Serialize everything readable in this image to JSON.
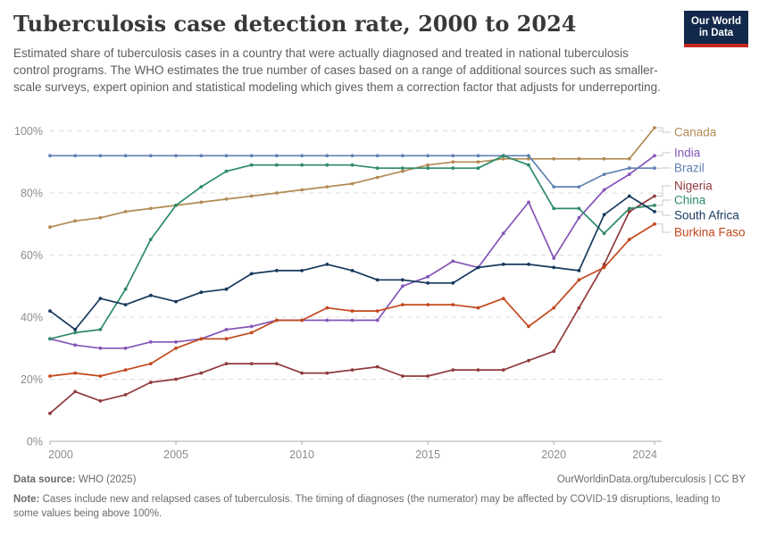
{
  "header": {
    "title": "Tuberculosis case detection rate, 2000 to 2024",
    "subtitle": "Estimated share of tuberculosis cases in a country that were actually diagnosed and treated in national tuberculosis control programs. The WHO estimates the true number of cases based on a range of additional sources such as smaller-scale surveys, expert opinion and statistical modeling which gives them a correction factor that adjusts for underreporting.",
    "logo": {
      "line1": "Our World",
      "line2": "in Data",
      "bg_color": "#12294B",
      "bar_color": "#C5281F"
    }
  },
  "chart_data": {
    "type": "line",
    "x": [
      2000,
      2001,
      2002,
      2003,
      2004,
      2005,
      2006,
      2007,
      2008,
      2009,
      2010,
      2011,
      2012,
      2013,
      2014,
      2015,
      2016,
      2017,
      2018,
      2019,
      2020,
      2021,
      2022,
      2023,
      2024
    ],
    "x_ticks": [
      "2000",
      "2005",
      "2010",
      "2015",
      "2020",
      "2024"
    ],
    "x_tick_years": [
      2000,
      2005,
      2010,
      2015,
      2020,
      2024
    ],
    "y_ticks": [
      "0%",
      "20%",
      "40%",
      "60%",
      "80%",
      "100%"
    ],
    "y_tick_values": [
      0,
      20,
      40,
      60,
      80,
      100
    ],
    "ylim": [
      0,
      101
    ],
    "grid": "horizontal-dashed",
    "legend_position": "right",
    "unit": "%",
    "series": [
      {
        "name": "Canada",
        "color": "#B28B54",
        "values": [
          69,
          71,
          72,
          74,
          75,
          76,
          77,
          78,
          79,
          80,
          81,
          82,
          83,
          85,
          87,
          89,
          90,
          90,
          91,
          91,
          91,
          91,
          91,
          91,
          101
        ]
      },
      {
        "name": "India",
        "color": "#8455B8",
        "values": [
          33,
          31,
          30,
          30,
          32,
          32,
          33,
          36,
          37,
          39,
          39,
          39,
          39,
          39,
          50,
          53,
          58,
          56,
          67,
          77,
          59,
          72,
          81,
          86,
          92
        ]
      },
      {
        "name": "Brazil",
        "color": "#6082B2",
        "values": [
          92,
          92,
          92,
          92,
          92,
          92,
          92,
          92,
          92,
          92,
          92,
          92,
          92,
          92,
          92,
          92,
          92,
          92,
          92,
          92,
          82,
          82,
          86,
          88,
          88
        ]
      },
      {
        "name": "Nigeria",
        "color": "#913B3D",
        "values": [
          9,
          16,
          13,
          15,
          19,
          20,
          22,
          25,
          25,
          25,
          22,
          22,
          23,
          24,
          21,
          21,
          23,
          23,
          23,
          26,
          29,
          43,
          57,
          74,
          79
        ]
      },
      {
        "name": "China",
        "color": "#2E8A6A",
        "values": [
          33,
          35,
          36,
          49,
          65,
          76,
          82,
          87,
          89,
          89,
          89,
          89,
          89,
          88,
          88,
          88,
          88,
          88,
          92,
          89,
          75,
          75,
          67,
          75,
          76
        ]
      },
      {
        "name": "South Africa",
        "color": "#16395D",
        "values": [
          42,
          36,
          46,
          44,
          47,
          45,
          48,
          49,
          54,
          55,
          55,
          57,
          55,
          52,
          52,
          51,
          51,
          56,
          57,
          57,
          56,
          55,
          73,
          79,
          74
        ]
      },
      {
        "name": "Burkina Faso",
        "color": "#C3481C",
        "values": [
          21,
          22,
          21,
          23,
          25,
          30,
          33,
          33,
          35,
          39,
          39,
          43,
          42,
          42,
          44,
          44,
          44,
          43,
          46,
          37,
          43,
          52,
          56,
          65,
          70
        ]
      }
    ]
  },
  "footer": {
    "source_label": "Data source:",
    "source_value": " WHO (2025)",
    "link_text": "OurWorldinData.org/tuberculosis | CC BY",
    "note_label": "Note:",
    "note_text": " Cases include new and relapsed cases of tuberculosis. The timing of diagnoses (the numerator) may be affected by COVID-19 disruptions, leading to some values being above 100%."
  }
}
